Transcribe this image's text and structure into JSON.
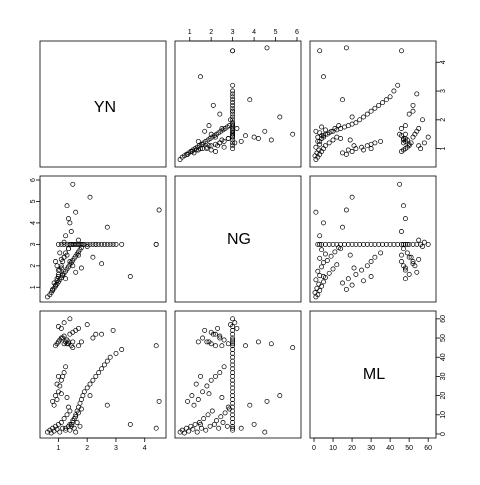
{
  "chart_data": {
    "type": "scatter",
    "subtype": "pairs-matrix",
    "variables": [
      "YN",
      "NG",
      "ML"
    ],
    "diagonal_labels": [
      "YN",
      "NG",
      "ML"
    ],
    "ranges": {
      "YN": [
        0.5,
        4.6
      ],
      "NG": [
        0.5,
        6.0
      ],
      "ML": [
        0,
        62
      ]
    },
    "axis_ticks": {
      "YN": [
        1,
        2,
        3,
        4
      ],
      "NG": [
        1,
        2,
        3,
        4,
        5,
        6
      ],
      "ML": [
        0,
        10,
        20,
        30,
        40,
        50,
        60
      ]
    },
    "axis_tick_labels": {
      "YN": [
        "1",
        "2",
        "3",
        "4"
      ],
      "NG": [
        "1",
        "2",
        "3",
        "4",
        "5",
        "6"
      ],
      "ML": [
        "0",
        "10",
        "20",
        "30",
        "40",
        "50",
        "60"
      ]
    },
    "axes_shown": {
      "top": "NG",
      "right": [
        "YN",
        "ML"
      ],
      "left": "NG",
      "bottom": [
        "YN",
        "ML"
      ]
    },
    "marker": "open-circle",
    "grid": false,
    "legend": "none",
    "points": [
      {
        "YN": 0.62,
        "NG": 0.55,
        "ML": 1
      },
      {
        "YN": 0.7,
        "NG": 0.65,
        "ML": 2
      },
      {
        "YN": 0.75,
        "NG": 0.75,
        "ML": 0.5
      },
      {
        "YN": 0.8,
        "NG": 0.85,
        "ML": 3
      },
      {
        "YN": 0.85,
        "NG": 0.95,
        "ML": 1.5
      },
      {
        "YN": 0.9,
        "NG": 1.05,
        "ML": 4
      },
      {
        "YN": 0.95,
        "NG": 1.15,
        "ML": 2.5
      },
      {
        "YN": 1.0,
        "NG": 1.25,
        "ML": 5
      },
      {
        "YN": 1.05,
        "NG": 1.35,
        "ML": 1
      },
      {
        "YN": 1.1,
        "NG": 1.45,
        "ML": 6
      },
      {
        "YN": 1.15,
        "NG": 1.55,
        "ML": 3
      },
      {
        "YN": 1.2,
        "NG": 1.65,
        "ML": 8
      },
      {
        "YN": 1.25,
        "NG": 1.75,
        "ML": 2
      },
      {
        "YN": 1.3,
        "NG": 1.85,
        "ML": 10
      },
      {
        "YN": 1.35,
        "NG": 1.95,
        "ML": 4
      },
      {
        "YN": 1.4,
        "NG": 2.05,
        "ML": 12
      },
      {
        "YN": 1.45,
        "NG": 2.15,
        "ML": 5
      },
      {
        "YN": 1.5,
        "NG": 2.25,
        "ML": 7
      },
      {
        "YN": 1.55,
        "NG": 2.35,
        "ML": 3
      },
      {
        "YN": 1.6,
        "NG": 2.45,
        "ML": 9
      },
      {
        "YN": 1.65,
        "NG": 2.55,
        "ML": 6
      },
      {
        "YN": 1.7,
        "NG": 2.65,
        "ML": 11
      },
      {
        "YN": 1.75,
        "NG": 2.75,
        "ML": 4
      },
      {
        "YN": 1.8,
        "NG": 2.85,
        "ML": 13
      },
      {
        "YN": 0.85,
        "NG": 1.2,
        "ML": 15
      },
      {
        "YN": 0.95,
        "NG": 1.4,
        "ML": 18
      },
      {
        "YN": 1.0,
        "NG": 1.6,
        "ML": 22
      },
      {
        "YN": 1.05,
        "NG": 1.8,
        "ML": 25
      },
      {
        "YN": 1.1,
        "NG": 2.0,
        "ML": 28
      },
      {
        "YN": 1.15,
        "NG": 2.2,
        "ML": 30
      },
      {
        "YN": 0.9,
        "NG": 1.1,
        "ML": 20
      },
      {
        "YN": 1.2,
        "NG": 2.4,
        "ML": 32
      },
      {
        "YN": 1.25,
        "NG": 2.6,
        "ML": 35
      },
      {
        "YN": 0.8,
        "NG": 0.9,
        "ML": 17
      },
      {
        "YN": 0.95,
        "NG": 1.3,
        "ML": 26
      },
      {
        "YN": 1.35,
        "NG": 2.8,
        "ML": 14
      },
      {
        "YN": 1.0,
        "NG": 1.5,
        "ML": 30
      },
      {
        "YN": 1.1,
        "NG": 1.9,
        "ML": 21
      },
      {
        "YN": 1.3,
        "NG": 2.5,
        "ML": 19
      },
      {
        "YN": 1.4,
        "NG": 3.0,
        "ML": 2
      },
      {
        "YN": 1.45,
        "NG": 3.0,
        "ML": 4
      },
      {
        "YN": 1.5,
        "NG": 3.0,
        "ML": 6
      },
      {
        "YN": 1.55,
        "NG": 3.0,
        "ML": 8
      },
      {
        "YN": 1.6,
        "NG": 3.0,
        "ML": 10
      },
      {
        "YN": 1.65,
        "NG": 3.0,
        "ML": 12
      },
      {
        "YN": 1.7,
        "NG": 3.0,
        "ML": 14
      },
      {
        "YN": 1.75,
        "NG": 3.0,
        "ML": 16
      },
      {
        "YN": 1.8,
        "NG": 3.0,
        "ML": 18
      },
      {
        "YN": 1.85,
        "NG": 3.0,
        "ML": 20
      },
      {
        "YN": 1.9,
        "NG": 3.0,
        "ML": 22
      },
      {
        "YN": 2.0,
        "NG": 3.0,
        "ML": 24
      },
      {
        "YN": 2.1,
        "NG": 3.0,
        "ML": 26
      },
      {
        "YN": 2.2,
        "NG": 3.0,
        "ML": 28
      },
      {
        "YN": 2.3,
        "NG": 3.0,
        "ML": 30
      },
      {
        "YN": 2.4,
        "NG": 3.0,
        "ML": 32
      },
      {
        "YN": 2.5,
        "NG": 3.0,
        "ML": 34
      },
      {
        "YN": 2.6,
        "NG": 3.0,
        "ML": 36
      },
      {
        "YN": 2.7,
        "NG": 3.0,
        "ML": 38
      },
      {
        "YN": 2.8,
        "NG": 3.0,
        "ML": 40
      },
      {
        "YN": 3.0,
        "NG": 3.0,
        "ML": 42
      },
      {
        "YN": 3.2,
        "NG": 3.0,
        "ML": 44
      },
      {
        "YN": 4.4,
        "NG": 3.0,
        "ML": 46
      },
      {
        "YN": 1.5,
        "NG": 3.0,
        "ML": 48
      },
      {
        "YN": 1.2,
        "NG": 3.0,
        "ML": 47
      },
      {
        "YN": 1.3,
        "NG": 3.0,
        "ML": 49
      },
      {
        "YN": 1.1,
        "NG": 3.0,
        "ML": 50
      },
      {
        "YN": 0.9,
        "NG": 2.2,
        "ML": 46
      },
      {
        "YN": 0.95,
        "NG": 2.0,
        "ML": 47
      },
      {
        "YN": 1.0,
        "NG": 1.8,
        "ML": 48
      },
      {
        "YN": 1.05,
        "NG": 2.6,
        "ML": 49
      },
      {
        "YN": 1.15,
        "NG": 1.6,
        "ML": 50
      },
      {
        "YN": 1.2,
        "NG": 2.4,
        "ML": 51
      },
      {
        "YN": 1.25,
        "NG": 1.4,
        "ML": 48
      },
      {
        "YN": 1.35,
        "NG": 2.8,
        "ML": 47
      },
      {
        "YN": 1.4,
        "NG": 2.2,
        "ML": 52
      },
      {
        "YN": 1.5,
        "NG": 2.0,
        "ML": 53
      },
      {
        "YN": 1.6,
        "NG": 1.7,
        "ML": 54
      },
      {
        "YN": 1.7,
        "NG": 2.5,
        "ML": 46
      },
      {
        "YN": 1.8,
        "NG": 1.9,
        "ML": 48
      },
      {
        "YN": 2.2,
        "NG": 2.4,
        "ML": 50
      },
      {
        "YN": 2.5,
        "NG": 2.1,
        "ML": 52
      },
      {
        "YN": 1.3,
        "NG": 4.8,
        "ML": 47
      },
      {
        "YN": 1.35,
        "NG": 4.2,
        "ML": 48
      },
      {
        "YN": 1.45,
        "NG": 3.6,
        "ML": 46
      },
      {
        "YN": 1.5,
        "NG": 5.8,
        "ML": 45
      },
      {
        "YN": 2.1,
        "NG": 5.2,
        "ML": 20
      },
      {
        "YN": 2.7,
        "NG": 3.8,
        "ML": 15
      },
      {
        "YN": 1.6,
        "NG": 4.5,
        "ML": 1
      },
      {
        "YN": 1.25,
        "NG": 3.4,
        "ML": 3
      },
      {
        "YN": 1.4,
        "NG": 4.0,
        "ML": 5
      },
      {
        "YN": 3.5,
        "NG": 1.5,
        "ML": 5
      },
      {
        "YN": 4.5,
        "NG": 4.6,
        "ML": 17
      },
      {
        "YN": 4.4,
        "NG": 3.0,
        "ML": 3
      },
      {
        "YN": 1.7,
        "NG": 3.2,
        "ML": 55
      },
      {
        "YN": 1.2,
        "NG": 3.1,
        "ML": 58
      },
      {
        "YN": 1.4,
        "NG": 3.0,
        "ML": 60
      },
      {
        "YN": 2.0,
        "NG": 2.9,
        "ML": 57
      },
      {
        "YN": 2.9,
        "NG": 3.0,
        "ML": 54
      },
      {
        "YN": 2.3,
        "NG": 3.0,
        "ML": 52
      },
      {
        "YN": 1.1,
        "NG": 2.3,
        "ML": 55
      },
      {
        "YN": 1.0,
        "NG": 3.0,
        "ML": 56
      }
    ]
  }
}
